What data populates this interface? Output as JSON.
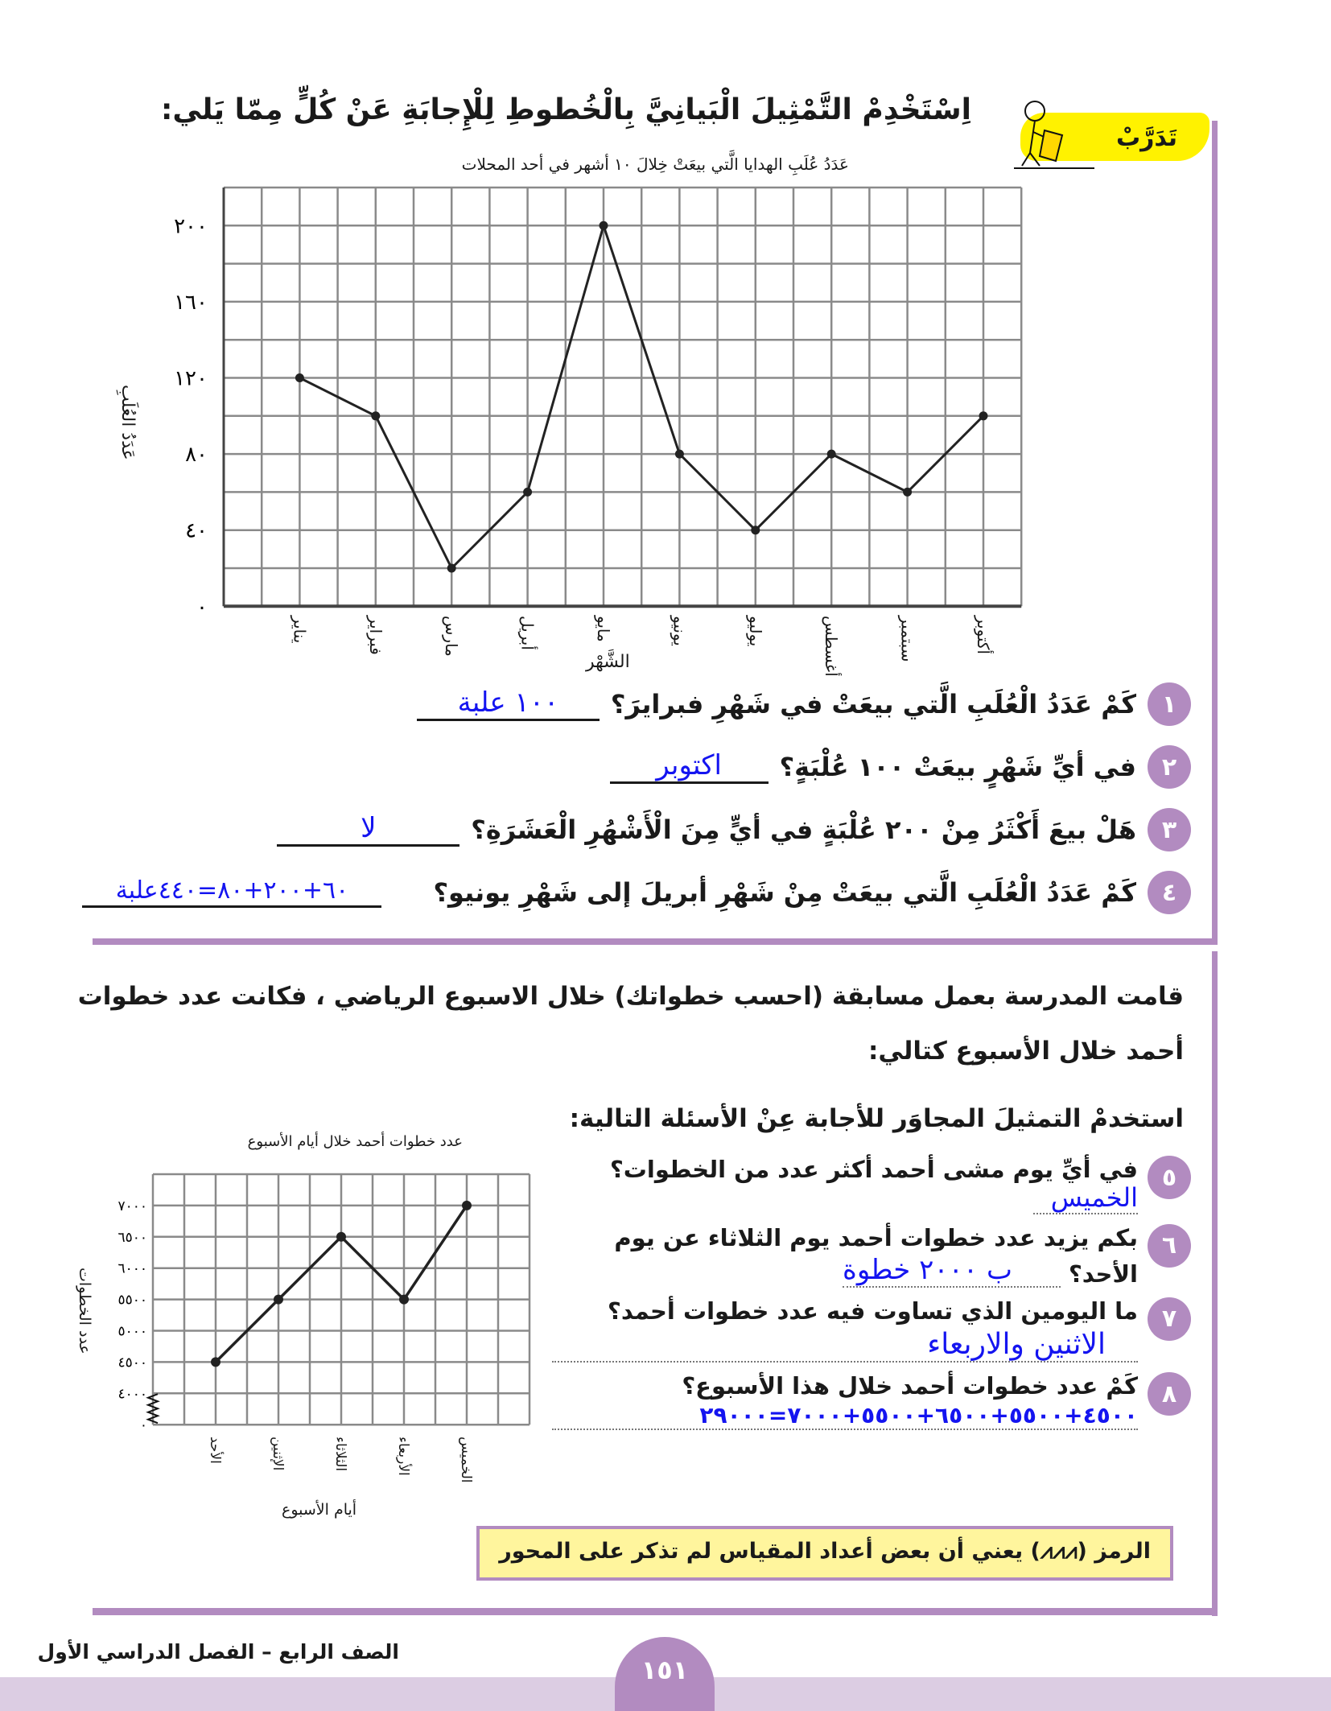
{
  "colors": {
    "accent": "#b28bc0",
    "band": "#dccde3",
    "answer": "#1414f0",
    "badge_yellow": "#fff200",
    "note_bg": "#fff59d"
  },
  "practice_badge": {
    "label": "تَدَرَّبْ",
    "icon": "stick-figure-reading-icon"
  },
  "section1": {
    "instruction": "اِسْتَخْدِمْ التَّمْثِيلَ الْبَيانِيَّ بِالْخُطوطِ لِلْإِجابَةِ عَنْ كُلٍّ مِمّا يَلي:",
    "questions": [
      {
        "num": "١",
        "text": "كَمْ عَدَدُ الْعُلَبِ الَّتي بيعَتْ في شَهْرِ فبرايرَ؟",
        "answer": "١٠٠ علبة"
      },
      {
        "num": "٢",
        "text": "في أيِّ شَهْرٍ بيعَتْ ١٠٠ عُلْبَةٍ؟",
        "answer": "اكتوبر"
      },
      {
        "num": "٣",
        "text": "هَلْ بيعَ أَكْثَرُ مِنْ ٢٠٠ عُلْبَةٍ في أيٍّ مِنَ الْأَشْهُرِ الْعَشَرَةِ؟",
        "answer": "لا"
      },
      {
        "num": "٤",
        "text": "كَمْ عَدَدُ الْعُلَبِ الَّتي بيعَتْ مِنْ شَهْرِ أبريلَ إلى شَهْرِ يونيو؟",
        "answer": "٦٠+٢٠٠+٨٠=٤٤٠علبة"
      }
    ]
  },
  "section2": {
    "intro_line1": "قامت المدرسة بعمل مسابقة (احسب خطواتك) خلال الاسبوع الرياضي ،  فكانت عدد خطوات",
    "intro_line2": "أحمد خلال الأسبوع كتالي:",
    "instruction": "استخدمْ التمثيلَ المجاوَر للأجابة عِنْ الأسئلة التالية:",
    "questions": [
      {
        "num": "٥",
        "text": "في أيِّ يوم مشى أحمد أكثر عدد من الخطوات؟",
        "answer": "الخميس"
      },
      {
        "num": "٦",
        "text": "بكم يزيد عدد خطوات أحمد يوم الثلاثاء عن يوم",
        "text2": "الأحد؟",
        "answer": "ب ٢٠٠٠ خطوة"
      },
      {
        "num": "٧",
        "text": "ما اليومين الذي تساوت فيه عدد خطوات أحمد؟",
        "answer": "الاثنين والاربعاء"
      },
      {
        "num": "٨",
        "text": "كَمْ عدد خطوات أحمد خلال هذا الأسبوع؟",
        "answer": "٤٥٠٠+٥٥٠٠+٦٥٠٠+٥٥٠٠+٧٠٠٠=٢٩٠٠٠"
      }
    ],
    "note": "الرمز (⩘⩘⩘) يعني أن بعض أعداد المقياس لم تذكر على المحور"
  },
  "footer": {
    "grade": "الصف الرابع – الفصل الدراسي الأول",
    "page_number": "١٥١"
  },
  "chart_data": [
    {
      "type": "line",
      "title": "عَدَدُ عُلَبِ الهدايا الَّتي بيعَتْ خِلالَ ١٠ أشهر في أحد المحلات",
      "xlabel": "الشَّهْر",
      "ylabel": "عَدَدُ العُلَبِ",
      "categories": [
        "يناير",
        "فبراير",
        "مارس",
        "أبريل",
        "مايو",
        "يونيو",
        "يوليو",
        "أغسطس",
        "سبتمبر",
        "أكتوبر"
      ],
      "values": [
        120,
        100,
        20,
        60,
        200,
        80,
        40,
        80,
        60,
        100
      ],
      "yticks": [
        0,
        40,
        80,
        120,
        160,
        200
      ],
      "ytick_labels": [
        "٠",
        "٤٠",
        "٨٠",
        "١٢٠",
        "١٦٠",
        "٢٠٠"
      ],
      "ylim": [
        0,
        220
      ],
      "grid": true
    },
    {
      "type": "line",
      "title": "عدد خطوات أحمد خلال أيام الأسبوع",
      "xlabel": "أيام الأسبوع",
      "ylabel": "عدد الخطوات",
      "categories": [
        "الأحد",
        "الإثنين",
        "الثلاثاء",
        "الأربعاء",
        "الخميس"
      ],
      "values": [
        4500,
        5500,
        6500,
        5500,
        7000
      ],
      "yticks": [
        0,
        4000,
        4500,
        5000,
        5500,
        6000,
        6500,
        7000
      ],
      "ytick_labels": [
        "٠",
        "٤٠٠٠",
        "٤٥٠٠",
        "٥٠٠٠",
        "٥٥٠٠",
        "٦٠٠٠",
        "٦٥٠٠",
        "٧٠٠٠"
      ],
      "ylim": [
        3500,
        7500
      ],
      "axis_break": true,
      "grid": true
    }
  ]
}
